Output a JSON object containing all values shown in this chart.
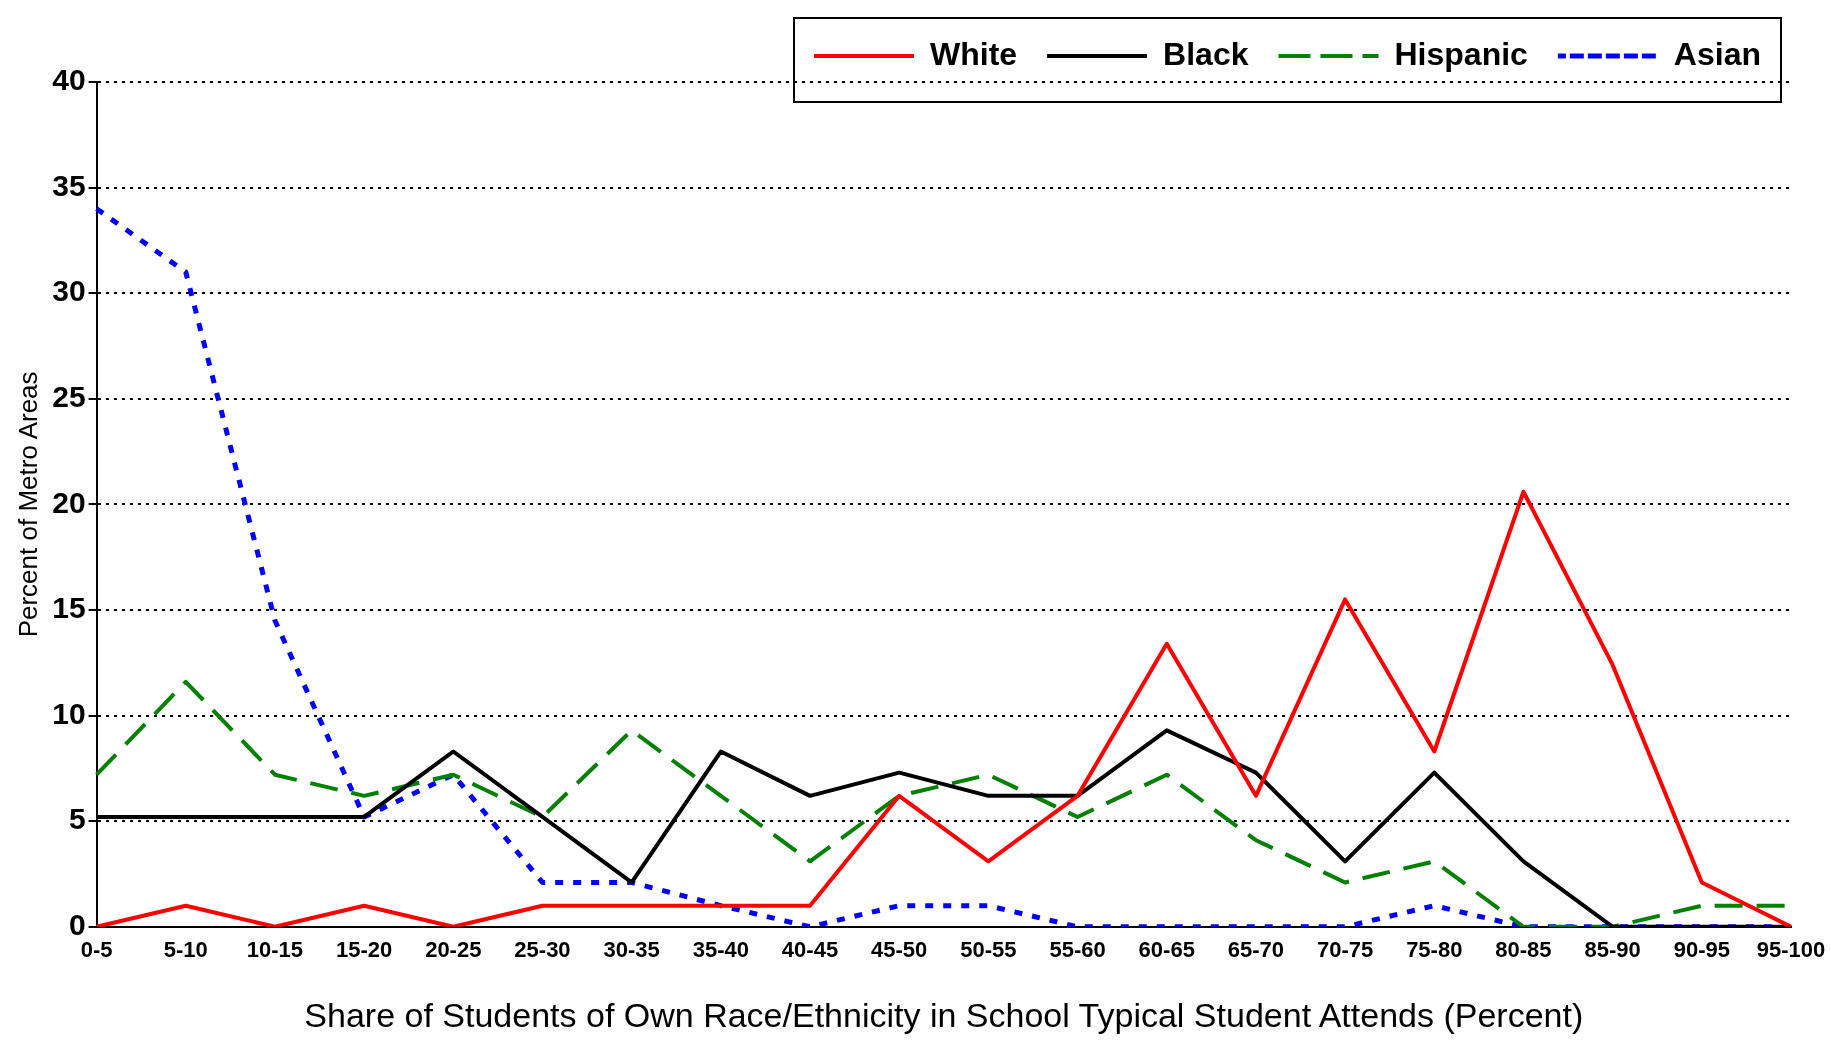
{
  "chart_data": {
    "type": "line",
    "xlabel": "Share of Students of Own Race/Ethnicity in School Typical Student Attends (Percent)",
    "ylabel": "Percent of Metro Areas",
    "categories": [
      "0-5",
      "5-10",
      "10-15",
      "15-20",
      "20-25",
      "25-30",
      "30-35",
      "35-40",
      "40-45",
      "45-50",
      "50-55",
      "55-60",
      "60-65",
      "65-70",
      "70-75",
      "75-80",
      "80-85",
      "85-90",
      "90-95",
      "95-100"
    ],
    "series": [
      {
        "name": "White",
        "color": "#ff0000",
        "line_style": "solid",
        "values": [
          0,
          1,
          0,
          1,
          0,
          1,
          1,
          1,
          1,
          6.2,
          3.1,
          6.2,
          13.4,
          6.2,
          15.5,
          8.3,
          20.6,
          12.4,
          2.1,
          0
        ]
      },
      {
        "name": "Black",
        "color": "#000000",
        "line_style": "solid",
        "values": [
          5.2,
          5.2,
          5.2,
          5.2,
          8.3,
          5.2,
          2.1,
          8.3,
          6.2,
          7.3,
          6.2,
          6.2,
          9.3,
          7.3,
          3.1,
          7.3,
          3.1,
          0,
          0,
          0
        ]
      },
      {
        "name": "Hispanic",
        "color": "#008000",
        "line_style": "dashed",
        "values": [
          7.2,
          11.6,
          7.2,
          6.2,
          7.2,
          5.2,
          9.3,
          6.2,
          3.1,
          6.2,
          7.2,
          5.2,
          7.2,
          4.1,
          2.1,
          3.1,
          0,
          0,
          1,
          1
        ]
      },
      {
        "name": "Asian",
        "color": "#0000ff",
        "line_style": "dotted",
        "values": [
          34,
          31,
          14.5,
          5.2,
          7.2,
          2.1,
          2.1,
          1,
          0,
          1,
          1,
          0,
          0,
          0,
          0,
          1,
          0,
          0,
          0,
          0
        ]
      }
    ],
    "ylim": [
      0,
      40
    ],
    "yticks": [
      0,
      5,
      10,
      15,
      20,
      25,
      30,
      35,
      40
    ],
    "grid": "y",
    "legend": "top right",
    "marker": "none"
  }
}
